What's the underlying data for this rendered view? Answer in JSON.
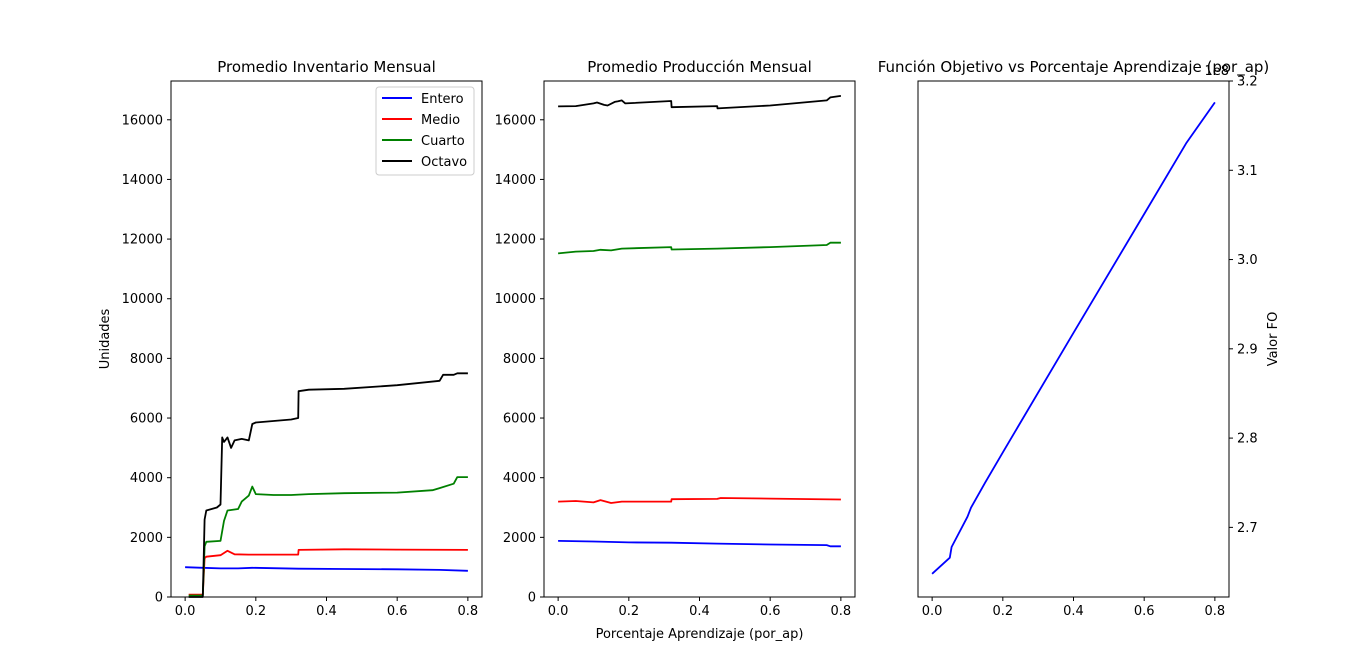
{
  "chart_data": [
    {
      "type": "line",
      "title": "Promedio Inventario Mensual",
      "xlabel": "",
      "ylabel": "Unidades",
      "xlim": [
        -0.04,
        0.84
      ],
      "ylim": [
        0,
        17300
      ],
      "xticks": [
        0.0,
        0.2,
        0.4,
        0.6,
        0.8
      ],
      "xtick_labels": [
        "0.0",
        "0.2",
        "0.4",
        "0.6",
        "0.8"
      ],
      "yticks": [
        0,
        2000,
        4000,
        6000,
        8000,
        10000,
        12000,
        14000,
        16000
      ],
      "ytick_labels": [
        "0",
        "2000",
        "4000",
        "6000",
        "8000",
        "10000",
        "12000",
        "14000",
        "16000"
      ],
      "legend": "top-right",
      "grid": false,
      "series": [
        {
          "name": "Entero",
          "color": "#0000ff",
          "x": [
            0.0,
            0.05,
            0.1,
            0.15,
            0.19,
            0.32,
            0.45,
            0.6,
            0.72,
            0.8
          ],
          "y": [
            1000,
            980,
            960,
            960,
            980,
            950,
            940,
            930,
            910,
            880
          ]
        },
        {
          "name": "Medio",
          "color": "#ff0000",
          "x": [
            0.01,
            0.05,
            0.055,
            0.06,
            0.1,
            0.12,
            0.14,
            0.18,
            0.32,
            0.321,
            0.45,
            0.6,
            0.8
          ],
          "y": [
            80,
            80,
            1300,
            1350,
            1400,
            1550,
            1430,
            1420,
            1420,
            1580,
            1600,
            1590,
            1580
          ]
        },
        {
          "name": "Cuarto",
          "color": "#008000",
          "x": [
            0.01,
            0.05,
            0.055,
            0.06,
            0.1,
            0.11,
            0.12,
            0.15,
            0.16,
            0.18,
            0.19,
            0.2,
            0.25,
            0.3,
            0.35,
            0.45,
            0.6,
            0.7,
            0.72,
            0.76,
            0.77,
            0.8
          ],
          "y": [
            50,
            50,
            1700,
            1850,
            1880,
            2550,
            2900,
            2950,
            3200,
            3400,
            3700,
            3450,
            3420,
            3420,
            3450,
            3480,
            3500,
            3580,
            3650,
            3800,
            4020,
            4020
          ]
        },
        {
          "name": "Octavo",
          "color": "#000000",
          "x": [
            0.01,
            0.05,
            0.055,
            0.06,
            0.09,
            0.1,
            0.105,
            0.11,
            0.12,
            0.13,
            0.14,
            0.16,
            0.18,
            0.19,
            0.2,
            0.25,
            0.3,
            0.32,
            0.321,
            0.35,
            0.45,
            0.6,
            0.72,
            0.73,
            0.76,
            0.77,
            0.8
          ],
          "y": [
            0,
            0,
            2600,
            2900,
            3000,
            3100,
            5350,
            5200,
            5350,
            5000,
            5250,
            5300,
            5250,
            5800,
            5850,
            5900,
            5950,
            6000,
            6900,
            6950,
            6980,
            7100,
            7250,
            7450,
            7450,
            7500,
            7500
          ]
        }
      ]
    },
    {
      "type": "line",
      "title": "Promedio Producción Mensual",
      "xlabel": "Porcentaje Aprendizaje (por_ap)",
      "ylabel": "",
      "xlim": [
        -0.04,
        0.84
      ],
      "ylim": [
        0,
        17300
      ],
      "xticks": [
        0.0,
        0.2,
        0.4,
        0.6,
        0.8
      ],
      "xtick_labels": [
        "0.0",
        "0.2",
        "0.4",
        "0.6",
        "0.8"
      ],
      "yticks": [
        0,
        2000,
        4000,
        6000,
        8000,
        10000,
        12000,
        14000,
        16000
      ],
      "ytick_labels": [
        "0",
        "2000",
        "4000",
        "6000",
        "8000",
        "10000",
        "12000",
        "14000",
        "16000"
      ],
      "grid": false,
      "series": [
        {
          "color": "#0000ff",
          "x": [
            0.0,
            0.1,
            0.2,
            0.32,
            0.45,
            0.6,
            0.76,
            0.77,
            0.8
          ],
          "y": [
            1880,
            1860,
            1830,
            1820,
            1790,
            1760,
            1740,
            1700,
            1700
          ]
        },
        {
          "color": "#ff0000",
          "x": [
            0.0,
            0.05,
            0.1,
            0.12,
            0.15,
            0.18,
            0.2,
            0.32,
            0.321,
            0.45,
            0.46,
            0.6,
            0.8
          ],
          "y": [
            3200,
            3220,
            3170,
            3250,
            3150,
            3200,
            3200,
            3200,
            3280,
            3290,
            3320,
            3300,
            3270
          ]
        },
        {
          "color": "#008000",
          "x": [
            0.0,
            0.05,
            0.1,
            0.12,
            0.15,
            0.18,
            0.32,
            0.321,
            0.45,
            0.6,
            0.76,
            0.77,
            0.8
          ],
          "y": [
            11520,
            11580,
            11600,
            11640,
            11620,
            11680,
            11730,
            11650,
            11680,
            11730,
            11800,
            11880,
            11880
          ]
        },
        {
          "color": "#000000",
          "x": [
            0.0,
            0.05,
            0.1,
            0.11,
            0.13,
            0.14,
            0.16,
            0.17,
            0.18,
            0.19,
            0.32,
            0.321,
            0.45,
            0.451,
            0.6,
            0.76,
            0.77,
            0.8
          ],
          "y": [
            16450,
            16460,
            16550,
            16580,
            16500,
            16480,
            16600,
            16620,
            16650,
            16550,
            16630,
            16420,
            16460,
            16380,
            16480,
            16650,
            16750,
            16800
          ]
        }
      ]
    },
    {
      "type": "line",
      "title": "Función Objetivo vs Porcentaje Aprendizaje (por_ap)",
      "xlabel": "",
      "ylabel": "Valor FO",
      "offset_text": "1e8",
      "y_axis_side": "right",
      "xlim": [
        -0.04,
        0.84
      ],
      "ylim": [
        2.622,
        3.2
      ],
      "xticks": [
        0.0,
        0.2,
        0.4,
        0.6,
        0.8
      ],
      "xtick_labels": [
        "0.0",
        "0.2",
        "0.4",
        "0.6",
        "0.8"
      ],
      "yticks": [
        2.7,
        2.8,
        2.9,
        3.0,
        3.1,
        3.2
      ],
      "ytick_labels": [
        "2.7",
        "2.8",
        "2.9",
        "3.0",
        "3.1",
        "3.2"
      ],
      "grid": false,
      "series": [
        {
          "color": "#0000ff",
          "x": [
            0.0,
            0.05,
            0.055,
            0.1,
            0.11,
            0.15,
            0.2,
            0.4,
            0.6,
            0.72,
            0.8
          ],
          "y": [
            2.648,
            2.666,
            2.678,
            2.712,
            2.722,
            2.75,
            2.784,
            2.918,
            3.051,
            3.131,
            3.176
          ]
        }
      ]
    }
  ]
}
